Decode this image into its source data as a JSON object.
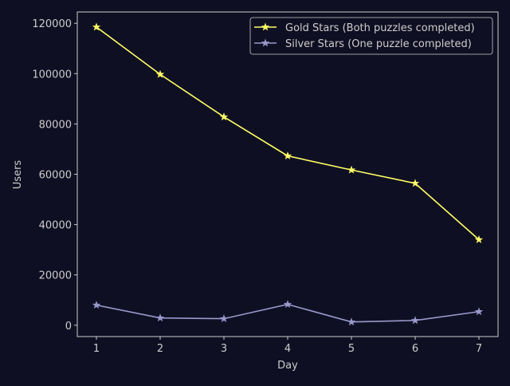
{
  "chart_data": {
    "type": "line",
    "title": "",
    "xlabel": "Day",
    "ylabel": "Users",
    "x": [
      1,
      2,
      3,
      4,
      5,
      6,
      7
    ],
    "xlim": [
      0.7,
      7.3
    ],
    "ylim": [
      -4500,
      124500
    ],
    "xticks": [
      1,
      2,
      3,
      4,
      5,
      6,
      7
    ],
    "yticks": [
      0,
      20000,
      40000,
      60000,
      80000,
      100000,
      120000
    ],
    "grid": false,
    "legend_position": "top-right",
    "series": [
      {
        "name": "Gold Stars (Both puzzles completed)",
        "color": "#ffff66",
        "marker": "star",
        "values": [
          118500,
          99700,
          82800,
          67300,
          61700,
          56400,
          34000
        ]
      },
      {
        "name": "Silver Stars (One puzzle completed)",
        "color": "#9999cc",
        "marker": "star",
        "values": [
          8000,
          2900,
          2600,
          8300,
          1300,
          1900,
          5400
        ]
      }
    ]
  },
  "colors": {
    "background": "#0f0f23",
    "axis": "#cccccc",
    "text": "#cccccc"
  }
}
